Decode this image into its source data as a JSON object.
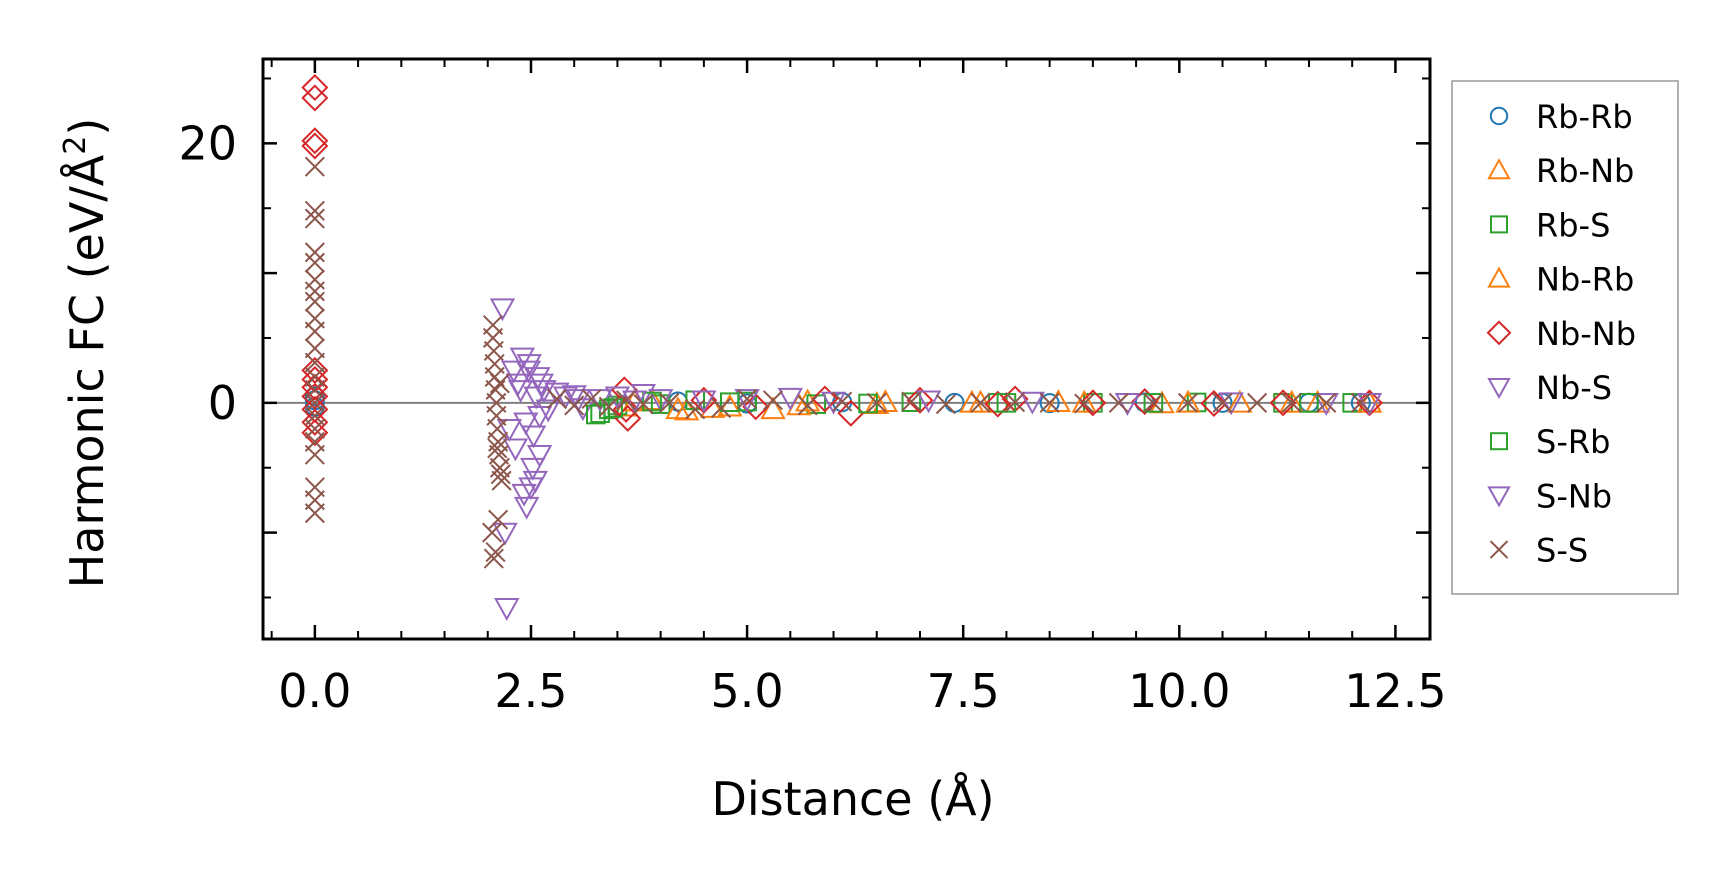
{
  "chart_data": {
    "type": "scatter",
    "xlabel": "Distance (Å)",
    "ylabel_main": "Harmonic FC (eV/Å",
    "ylabel_sup": "2",
    "ylabel_close": ")",
    "xlim": [
      -0.6,
      12.9
    ],
    "ylim": [
      -18.2,
      26.5
    ],
    "x_ticks": [
      0.0,
      2.5,
      5.0,
      7.5,
      10.0,
      12.5
    ],
    "x_tick_labels": [
      "0.0",
      "2.5",
      "5.0",
      "7.5",
      "10.0",
      "12.5"
    ],
    "x_minor_step": 0.5,
    "y_ticks": [
      -15,
      -10,
      -5,
      0,
      5,
      10,
      15,
      20,
      25
    ],
    "y_tick_labels": [
      "",
      "",
      "",
      "0",
      "",
      "",
      "",
      "20",
      ""
    ],
    "zero_line": true,
    "legend_position": "outside-right",
    "series": [
      {
        "name": "Rb-Rb",
        "marker": "circle",
        "color": "#1f77b4",
        "x": [
          0.0,
          0.0,
          0.0,
          4.2,
          5.0,
          6.1,
          7.4,
          8.5,
          9.6,
          10.5,
          11.5,
          12.1
        ],
        "y": [
          0.2,
          -0.3,
          0.5,
          0.1,
          -0.05,
          0.05,
          0.0,
          -0.02,
          0.03,
          0.0,
          0.01,
          0.0
        ]
      },
      {
        "name": "Rb-Nb",
        "marker": "triangle-up",
        "color": "#ff7f0e",
        "x": [
          3.6,
          3.9,
          4.3,
          4.6,
          5.3,
          5.7,
          6.5,
          7.6,
          8.6,
          9.8,
          10.7,
          11.6,
          12.2
        ],
        "y": [
          -0.3,
          0.2,
          -0.6,
          -0.4,
          -0.5,
          0.1,
          -0.1,
          0.0,
          0.05,
          -0.05,
          0.0,
          0.0,
          0.0
        ]
      },
      {
        "name": "Rb-S",
        "marker": "square",
        "color": "#2ca02c",
        "x": [
          3.3,
          3.4,
          3.5,
          4.0,
          4.4,
          5.0,
          5.8,
          6.9,
          7.9,
          9.0,
          10.2,
          11.2,
          12.0
        ],
        "y": [
          -0.8,
          -0.5,
          -0.2,
          -0.1,
          0.2,
          0.1,
          -0.1,
          0.05,
          0.0,
          0.0,
          0.03,
          0.0,
          0.0
        ]
      },
      {
        "name": "Nb-Rb",
        "marker": "triangle-up",
        "color": "#ff7f0e",
        "x": [
          3.7,
          4.2,
          4.8,
          5.6,
          6.6,
          7.7,
          8.9,
          10.1,
          11.3,
          12.2
        ],
        "y": [
          0.1,
          -0.5,
          -0.3,
          -0.2,
          0.05,
          0.0,
          0.0,
          0.0,
          0.0,
          0.0
        ]
      },
      {
        "name": "Nb-Nb",
        "marker": "diamond",
        "color": "#d62728",
        "x": [
          0.0,
          0.0,
          0.0,
          0.0,
          0.0,
          0.0,
          0.0,
          0.0,
          0.0,
          0.0,
          0.0,
          3.58,
          3.6,
          3.62,
          4.5,
          5.1,
          5.9,
          6.2,
          7.0,
          7.9,
          8.1,
          9.0,
          9.6,
          10.4,
          11.2,
          12.2
        ],
        "y": [
          24.3,
          23.5,
          20.2,
          19.8,
          2.5,
          1.8,
          1.2,
          0.5,
          -0.5,
          -1.5,
          -2.3,
          1.0,
          -0.5,
          -1.2,
          0.2,
          -0.3,
          0.3,
          -0.8,
          0.2,
          -0.1,
          0.3,
          0.0,
          0.1,
          -0.05,
          0.0,
          0.0
        ]
      },
      {
        "name": "Nb-S",
        "marker": "triangle-down",
        "color": "#9467bd",
        "x": [
          2.17,
          2.2,
          2.22,
          2.3,
          2.35,
          2.4,
          2.42,
          2.45,
          2.48,
          2.5,
          2.52,
          2.55,
          2.58,
          2.6,
          2.62,
          2.8,
          2.9,
          3.0,
          3.1,
          3.3,
          3.5,
          3.8,
          4.0,
          4.5,
          5.0,
          5.5,
          6.0,
          7.1,
          8.3,
          9.4,
          10.6,
          11.7,
          12.2
        ],
        "y": [
          7.3,
          -10.0,
          -15.8,
          2.5,
          1.5,
          3.5,
          -7.0,
          -8.0,
          3.0,
          -6.5,
          -5.0,
          -6.0,
          2.0,
          -4.0,
          1.5,
          0.8,
          0.5,
          0.6,
          -0.4,
          0.3,
          0.5,
          0.7,
          0.3,
          0.2,
          0.3,
          0.4,
          0.1,
          0.2,
          0.1,
          0.0,
          0.05,
          0.0,
          0.0
        ]
      },
      {
        "name": "S-Rb",
        "marker": "square",
        "color": "#2ca02c",
        "x": [
          3.25,
          3.45,
          3.9,
          4.8,
          6.4,
          8.0,
          9.7,
          11.5
        ],
        "y": [
          -0.9,
          -0.4,
          0.1,
          0.05,
          -0.05,
          0.0,
          0.0,
          0.0
        ]
      },
      {
        "name": "S-Nb",
        "marker": "triangle-down",
        "color": "#9467bd",
        "x": [
          2.25,
          2.32,
          2.38,
          2.44,
          2.47,
          2.53,
          2.56,
          2.6,
          2.65,
          2.7,
          3.05,
          3.7
        ],
        "y": [
          -2.0,
          -3.5,
          1.0,
          -1.5,
          2.5,
          -2.5,
          0.5,
          -1.0,
          1.0,
          -0.5,
          0.3,
          0.2
        ]
      },
      {
        "name": "S-S",
        "marker": "x",
        "color": "#8c564b",
        "x": [
          0.0,
          0.0,
          0.0,
          0.0,
          0.0,
          0.0,
          0.0,
          0.0,
          0.0,
          0.0,
          0.0,
          0.0,
          0.0,
          0.0,
          0.0,
          0.0,
          0.0,
          0.0,
          0.0,
          0.0,
          0.0,
          0.0,
          2.06,
          2.06,
          2.07,
          2.08,
          2.08,
          2.09,
          2.1,
          2.1,
          2.11,
          2.12,
          2.13,
          2.14,
          2.15,
          2.16,
          2.05,
          2.09,
          2.12,
          2.07,
          2.11,
          2.14,
          2.8,
          3.0,
          3.2,
          3.4,
          3.6,
          3.8,
          4.1,
          4.4,
          4.7,
          5.0,
          5.3,
          5.7,
          6.1,
          6.5,
          6.9,
          7.3,
          7.7,
          8.1,
          8.5,
          8.9,
          9.3,
          9.7,
          10.1,
          10.5,
          10.9,
          11.3,
          11.7,
          12.1
        ],
        "y": [
          18.2,
          14.8,
          14.2,
          11.6,
          10.8,
          9.5,
          8.6,
          7.8,
          6.5,
          5.5,
          4.2,
          3.1,
          2.0,
          1.0,
          0.0,
          -1.0,
          -2.0,
          -3.0,
          -4.0,
          -6.5,
          -7.5,
          -8.5,
          6.0,
          5.0,
          4.0,
          3.0,
          2.0,
          1.0,
          0.0,
          -1.0,
          -2.0,
          -3.0,
          -4.0,
          -5.0,
          -5.5,
          -6.0,
          -10.0,
          -11.5,
          -9.0,
          -12.0,
          -3.5,
          1.5,
          0.3,
          -0.2,
          0.3,
          -0.3,
          0.2,
          -0.1,
          0.0,
          -0.5,
          -0.4,
          0.3,
          0.2,
          -0.2,
          0.1,
          0.0,
          0.1,
          -0.1,
          0.0,
          0.05,
          0.0,
          -0.05,
          0.0,
          0.0,
          0.0,
          0.0,
          0.0,
          0.0,
          0.0,
          0.0
        ]
      }
    ]
  }
}
